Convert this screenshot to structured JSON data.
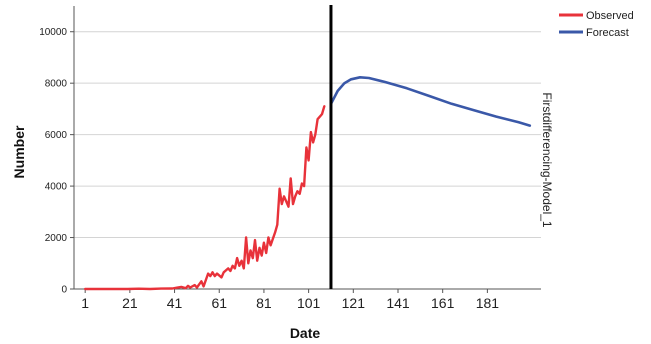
{
  "chart_data": {
    "type": "line",
    "xlabel": "Date",
    "ylabel": "Number",
    "side_label": "Firstdifferencing-Model_1",
    "xlim": [
      -4,
      205
    ],
    "ylim": [
      0,
      11000
    ],
    "x_ticks": [
      1,
      21,
      41,
      61,
      81,
      101,
      121,
      141,
      161,
      181
    ],
    "y_ticks": [
      0,
      2000,
      4000,
      6000,
      8000,
      10000
    ],
    "grid": "horizontal",
    "legend_position": "top-right",
    "vertical_marker_x": 111,
    "series": [
      {
        "name": "Observed",
        "color": "#e8323a",
        "points": [
          [
            1,
            0
          ],
          [
            10,
            0
          ],
          [
            20,
            0
          ],
          [
            25,
            10
          ],
          [
            30,
            0
          ],
          [
            35,
            15
          ],
          [
            40,
            20
          ],
          [
            42,
            50
          ],
          [
            44,
            80
          ],
          [
            46,
            30
          ],
          [
            47,
            120
          ],
          [
            48,
            60
          ],
          [
            50,
            150
          ],
          [
            51,
            60
          ],
          [
            53,
            300
          ],
          [
            54,
            100
          ],
          [
            56,
            600
          ],
          [
            57,
            500
          ],
          [
            58,
            650
          ],
          [
            59,
            500
          ],
          [
            60,
            600
          ],
          [
            62,
            450
          ],
          [
            63,
            650
          ],
          [
            65,
            800
          ],
          [
            66,
            700
          ],
          [
            67,
            900
          ],
          [
            68,
            800
          ],
          [
            69,
            1200
          ],
          [
            70,
            900
          ],
          [
            71,
            1100
          ],
          [
            72,
            800
          ],
          [
            73,
            2000
          ],
          [
            74,
            1000
          ],
          [
            75,
            1500
          ],
          [
            76,
            1200
          ],
          [
            77,
            1900
          ],
          [
            78,
            1100
          ],
          [
            79,
            1600
          ],
          [
            80,
            1300
          ],
          [
            81,
            1800
          ],
          [
            82,
            1400
          ],
          [
            83,
            2000
          ],
          [
            84,
            1700
          ],
          [
            86,
            2200
          ],
          [
            87,
            2500
          ],
          [
            88,
            3900
          ],
          [
            89,
            3300
          ],
          [
            90,
            3600
          ],
          [
            91,
            3400
          ],
          [
            92,
            3200
          ],
          [
            93,
            4300
          ],
          [
            94,
            3300
          ],
          [
            95,
            3600
          ],
          [
            96,
            3800
          ],
          [
            97,
            3700
          ],
          [
            98,
            4100
          ],
          [
            99,
            4000
          ],
          [
            100,
            5500
          ],
          [
            101,
            5000
          ],
          [
            102,
            6100
          ],
          [
            103,
            5700
          ],
          [
            104,
            6000
          ],
          [
            105,
            6600
          ],
          [
            107,
            6800
          ],
          [
            108,
            7100
          ]
        ]
      },
      {
        "name": "Forecast",
        "color": "#3a58a8",
        "points": [
          [
            111,
            7200
          ],
          [
            114,
            7700
          ],
          [
            117,
            8000
          ],
          [
            120,
            8150
          ],
          [
            124,
            8230
          ],
          [
            128,
            8200
          ],
          [
            135,
            8050
          ],
          [
            145,
            7800
          ],
          [
            155,
            7500
          ],
          [
            165,
            7200
          ],
          [
            175,
            6950
          ],
          [
            185,
            6700
          ],
          [
            195,
            6480
          ],
          [
            200,
            6350
          ]
        ]
      }
    ]
  },
  "colors": {
    "marker": "#000000",
    "grid": "#d4d4d4",
    "axis": "#555555"
  }
}
